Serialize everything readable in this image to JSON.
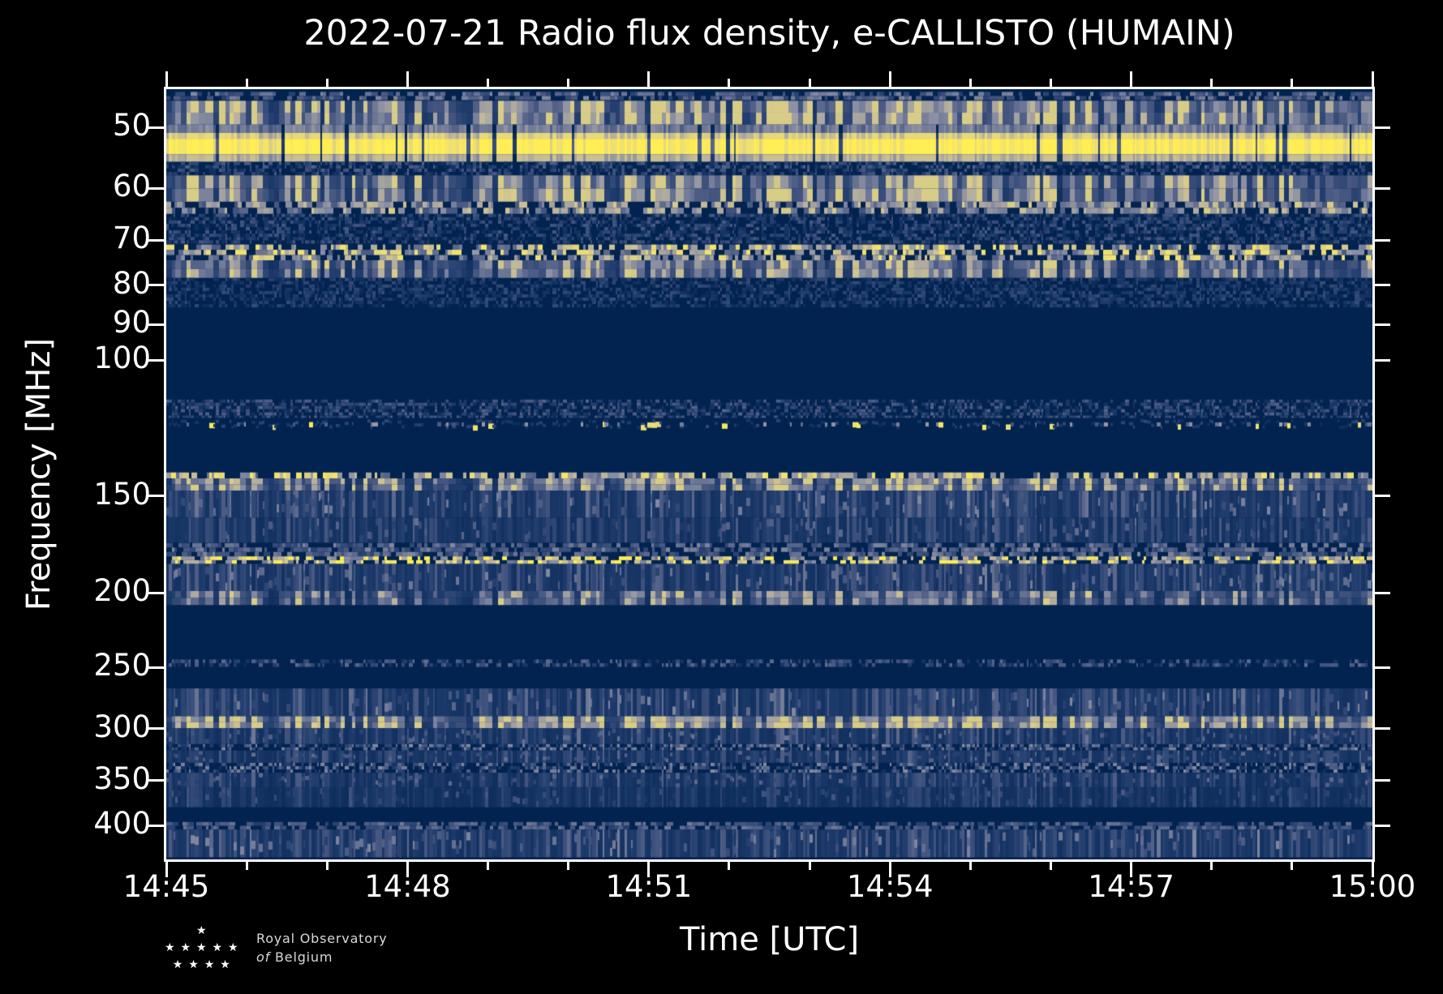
{
  "footer_logo": {
    "line1": "Royal Observatory",
    "line2_italic": "of",
    "line2_rest": "Belgium",
    "star_rows": [
      1,
      5,
      4
    ]
  },
  "chart_data": {
    "type": "heatmap",
    "title": "2022-07-21 Radio flux density, e-CALLISTO (HUMAIN)",
    "xlabel": "Time [UTC]",
    "ylabel": "Frequency [MHz]",
    "x_axis": {
      "tick_labels": [
        "14:45",
        "14:48",
        "14:51",
        "14:54",
        "14:57",
        "15:00"
      ],
      "total_minutes": 15,
      "major_interval_min": 3,
      "minor_interval_min": 1
    },
    "y_axis": {
      "scale": "log",
      "unit": "MHz",
      "range_mhz": [
        45,
        444
      ],
      "tick_labels": [
        50,
        60,
        70,
        80,
        90,
        100,
        150,
        200,
        250,
        300,
        350,
        400
      ]
    },
    "colors": {
      "background": "#000000",
      "plot_background": "#02234f",
      "axis": "#ffffff",
      "text": "#ffffff",
      "colormap_stops": [
        [
          0.0,
          "#02234f"
        ],
        [
          0.22,
          "#1e3b6c"
        ],
        [
          0.42,
          "#4e5d85"
        ],
        [
          0.58,
          "#858ba2"
        ],
        [
          0.72,
          "#bab29e"
        ],
        [
          0.85,
          "#ebdc78"
        ],
        [
          1.0,
          "#ffee54"
        ]
      ]
    },
    "bands": [
      {
        "f": [
          45.0,
          46.1
        ],
        "style": "rowdash",
        "t": 0.5
      },
      {
        "f": [
          46.2,
          49.6
        ],
        "style": "blotch",
        "t": 0.5
      },
      {
        "f": [
          49.6,
          55.4
        ],
        "style": "bright",
        "t": 0.97
      },
      {
        "f": [
          55.4,
          57.7
        ],
        "style": "speckle",
        "t": 0.3
      },
      {
        "f": [
          57.7,
          62.4
        ],
        "style": "blotch",
        "t": 0.46
      },
      {
        "f": [
          62.4,
          64.7
        ],
        "style": "rowdash",
        "t": 0.7
      },
      {
        "f": [
          64.7,
          70.7
        ],
        "style": "speckle",
        "t": 0.27
      },
      {
        "f": [
          70.9,
          74.3
        ],
        "style": "rowdash",
        "t": 0.8
      },
      {
        "f": [
          74.3,
          78.3
        ],
        "style": "blotch",
        "t": 0.4
      },
      {
        "f": [
          78.3,
          85.5
        ],
        "style": "speckle",
        "t": 0.22
      },
      {
        "f": [
          112.5,
          118.0
        ],
        "style": "speckle",
        "t": 0.3
      },
      {
        "f": [
          118.0,
          123.5
        ],
        "style": "blips",
        "t": 0.6
      },
      {
        "f": [
          139.8,
          142.3
        ],
        "style": "rowdash",
        "t": 0.82
      },
      {
        "f": [
          142.3,
          147.6
        ],
        "style": "blotch",
        "t": 0.44
      },
      {
        "f": [
          147.6,
          160.0
        ],
        "style": "streak",
        "t": 0.3
      },
      {
        "f": [
          160.0,
          172.3
        ],
        "style": "streak",
        "t": 0.26
      },
      {
        "f": [
          172.5,
          179.5
        ],
        "style": "rowdash",
        "t": 0.5
      },
      {
        "f": [
          179.5,
          183.6
        ],
        "style": "rowdash",
        "t": 0.92
      },
      {
        "f": [
          183.6,
          199.0
        ],
        "style": "streak",
        "t": 0.3
      },
      {
        "f": [
          199.0,
          207.5
        ],
        "style": "blotch",
        "t": 0.36
      },
      {
        "f": [
          244.0,
          249.5
        ],
        "style": "speckle",
        "t": 0.32
      },
      {
        "f": [
          266.0,
          289.0
        ],
        "style": "streak",
        "t": 0.3
      },
      {
        "f": [
          289.0,
          299.5
        ],
        "style": "blotch",
        "t": 0.52
      },
      {
        "f": [
          299.5,
          314.0
        ],
        "style": "streak",
        "t": 0.27
      },
      {
        "f": [
          314.0,
          320.0
        ],
        "style": "speckle",
        "t": 0.4
      },
      {
        "f": [
          320.0,
          332.0
        ],
        "style": "streak",
        "t": 0.26
      },
      {
        "f": [
          332.0,
          342.0
        ],
        "style": "speckle",
        "t": 0.4
      },
      {
        "f": [
          342.0,
          357.0
        ],
        "style": "streak",
        "t": 0.25
      },
      {
        "f": [
          357.0,
          379.0
        ],
        "style": "streak",
        "t": 0.21
      },
      {
        "f": [
          396.0,
          405.0
        ],
        "style": "rowdash",
        "t": 0.46
      },
      {
        "f": [
          405.0,
          440.0
        ],
        "style": "streak",
        "t": 0.3
      }
    ]
  }
}
